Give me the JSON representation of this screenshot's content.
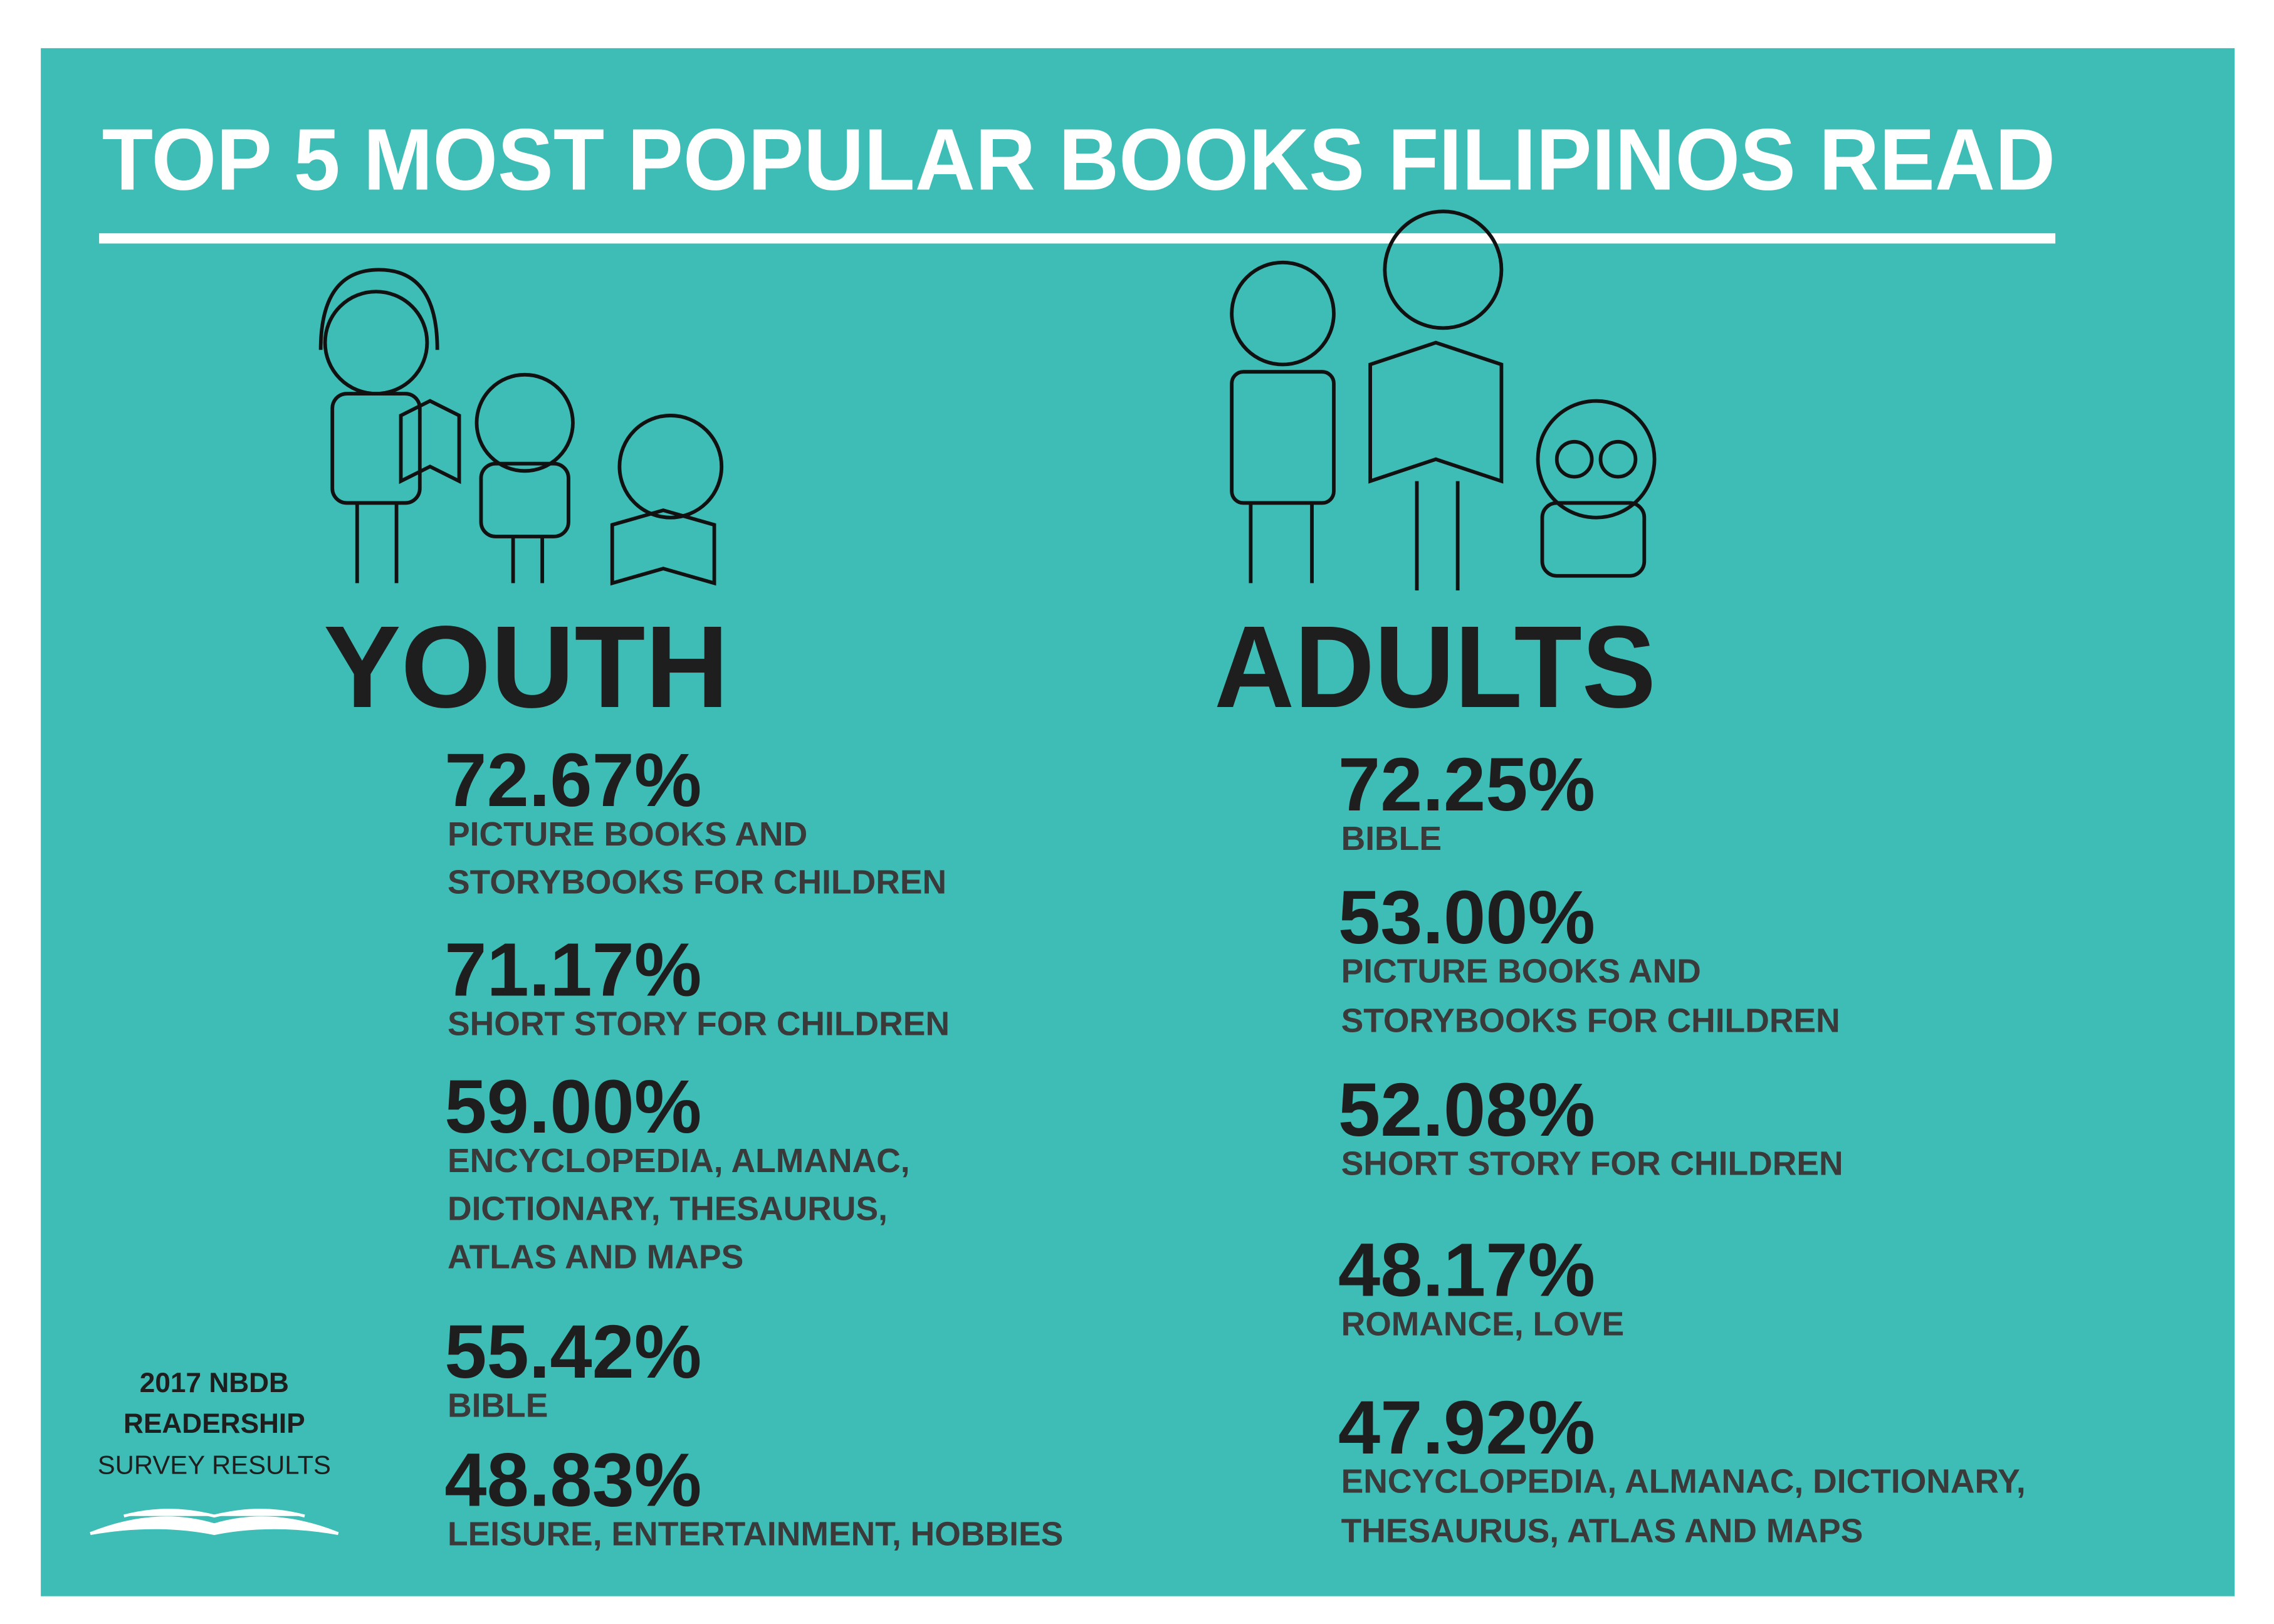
{
  "title": "TOP 5 MOST POPULAR BOOKS FILIPINOS READ",
  "youth": {
    "heading": "YOUTH",
    "items": [
      {
        "percent": "72.67%",
        "lines": [
          "PICTURE BOOKS AND",
          "STORYBOOKS FOR CHILDREN"
        ]
      },
      {
        "percent": "71.17%",
        "lines": [
          "SHORT STORY FOR CHILDREN"
        ]
      },
      {
        "percent": "59.00%",
        "lines": [
          "ENCYCLOPEDIA, ALMANAC,",
          "DICTIONARY, THESAURUS,",
          "ATLAS AND MAPS"
        ]
      },
      {
        "percent": "55.42%",
        "lines": [
          "BIBLE"
        ]
      },
      {
        "percent": "48.83%",
        "lines": [
          "LEISURE, ENTERTAINMENT, HOBBIES"
        ]
      }
    ]
  },
  "adults": {
    "heading": "ADULTS",
    "items": [
      {
        "percent": "72.25%",
        "lines": [
          "BIBLE"
        ]
      },
      {
        "percent": "53.00%",
        "lines": [
          "PICTURE BOOKS AND",
          "STORYBOOKS FOR CHILDREN"
        ]
      },
      {
        "percent": "52.08%",
        "lines": [
          "SHORT STORY FOR CHILDREN"
        ]
      },
      {
        "percent": "48.17%",
        "lines": [
          "ROMANCE, LOVE"
        ]
      },
      {
        "percent": "47.92%",
        "lines": [
          "ENCYCLOPEDIA, ALMANAC, DICTIONARY,",
          "THESAURUS, ATLAS AND MAPS"
        ]
      }
    ]
  },
  "source": {
    "line1": "2017 NBDB",
    "line2": "READERSHIP",
    "line3": "SURVEY RESULTS"
  }
}
